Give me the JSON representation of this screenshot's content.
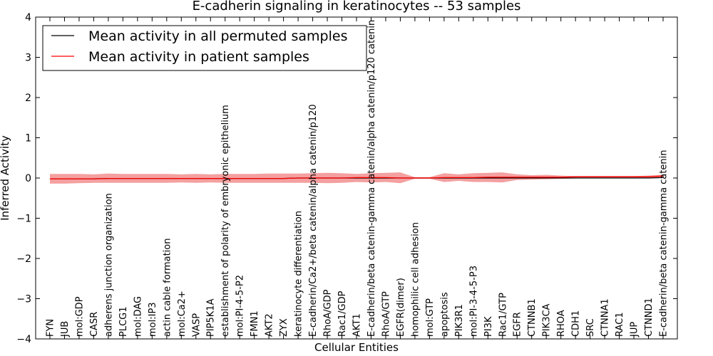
{
  "chart_data": {
    "type": "line",
    "title": "E-cadherin signaling in keratinocytes -- 53 samples",
    "xlabel": "Cellular Entities",
    "ylabel": "Inferred Activity",
    "ylim": [
      -4,
      4
    ],
    "yticks": [
      -4,
      -3,
      -2,
      -1,
      0,
      1,
      2,
      3,
      4
    ],
    "legend_position": "top-left",
    "categories": [
      "FYN",
      "JUB",
      "mol:GDP",
      "CASR",
      "adherens junction organization",
      "PLCG1",
      "mol:DAG",
      "mol:IP3",
      "actin cable formation",
      "mol:Ca2+",
      "VASP",
      "PIP5K1A",
      "establishment of polarity of embryonic epithelium",
      "mol:PI-4-5-P2",
      "FMN1",
      "AKT2",
      "ZYX",
      "keratinocyte differentiation",
      "E-cadherin/Ca2+/beta catenin/alpha catenin/p120",
      "RhoA/GDP",
      "Rac1/GDP",
      "AKT1",
      "E-cadherin/beta catenin-gamma catenin/alpha catenin/p120 catenin",
      "RhoA/GTP",
      "EGFR(dimer)",
      "homophilic cell adhesion",
      "mol:GTP",
      "apoptosis",
      "PIK3R1",
      "mol:PI-3-4-5-P3",
      "PI3K",
      "Rac1/GTP",
      "EGFR",
      "CTNNB1",
      "PIK3CA",
      "RHOA",
      "CDH1",
      "SRC",
      "CTNNA1",
      "RAC1",
      "JUP",
      "CTNND1",
      "E-cadherin/beta catenin-gamma catenin"
    ],
    "series": [
      {
        "name": "Mean activity in all permuted samples",
        "color": "#000000",
        "values": [
          -0.02,
          -0.02,
          -0.02,
          -0.02,
          -0.01,
          -0.01,
          -0.01,
          -0.01,
          -0.01,
          -0.01,
          -0.01,
          -0.01,
          -0.01,
          -0.01,
          -0.01,
          -0.01,
          -0.01,
          0.0,
          0.0,
          0.0,
          0.0,
          0.0,
          0.0,
          0.0,
          0.0,
          0.0,
          0.0,
          0.0,
          0.0,
          0.0,
          0.0,
          0.0,
          0.0,
          0.0,
          0.0,
          0.0,
          0.0,
          0.0,
          0.0,
          0.0,
          0.0,
          0.0,
          0.01
        ]
      },
      {
        "name": "Mean activity in patient samples",
        "color": "#ff0000",
        "values": [
          -0.02,
          -0.02,
          -0.02,
          -0.02,
          -0.01,
          -0.01,
          -0.01,
          -0.01,
          -0.01,
          -0.01,
          -0.01,
          -0.01,
          -0.01,
          -0.01,
          -0.01,
          -0.01,
          -0.01,
          0.0,
          0.0,
          0.0,
          0.0,
          0.01,
          0.01,
          0.01,
          0.0,
          0.0,
          0.0,
          0.01,
          0.01,
          0.01,
          0.02,
          0.02,
          0.02,
          0.02,
          0.02,
          0.02,
          0.03,
          0.03,
          0.03,
          0.03,
          0.03,
          0.03,
          0.05
        ],
        "upper": [
          0.1,
          0.1,
          0.1,
          0.09,
          0.11,
          0.1,
          0.1,
          0.1,
          0.1,
          0.09,
          0.1,
          0.09,
          0.1,
          0.1,
          0.1,
          0.11,
          0.11,
          0.11,
          0.12,
          0.13,
          0.12,
          0.1,
          0.12,
          0.13,
          0.14,
          0.02,
          0.02,
          0.12,
          0.09,
          0.12,
          0.13,
          0.14,
          0.09,
          0.07,
          0.08,
          0.06,
          0.05,
          0.05,
          0.05,
          0.05,
          0.05,
          0.06,
          0.08
        ],
        "lower": [
          -0.14,
          -0.14,
          -0.13,
          -0.12,
          -0.12,
          -0.12,
          -0.12,
          -0.12,
          -0.12,
          -0.11,
          -0.12,
          -0.11,
          -0.12,
          -0.12,
          -0.12,
          -0.12,
          -0.12,
          -0.12,
          -0.12,
          -0.13,
          -0.12,
          -0.1,
          -0.11,
          -0.1,
          -0.13,
          -0.02,
          -0.02,
          -0.1,
          -0.07,
          -0.1,
          -0.1,
          -0.11,
          -0.05,
          -0.04,
          -0.03,
          -0.02,
          -0.01,
          0.0,
          0.0,
          0.0,
          0.0,
          0.0,
          0.01
        ],
        "band_color": "#f08080"
      }
    ]
  }
}
